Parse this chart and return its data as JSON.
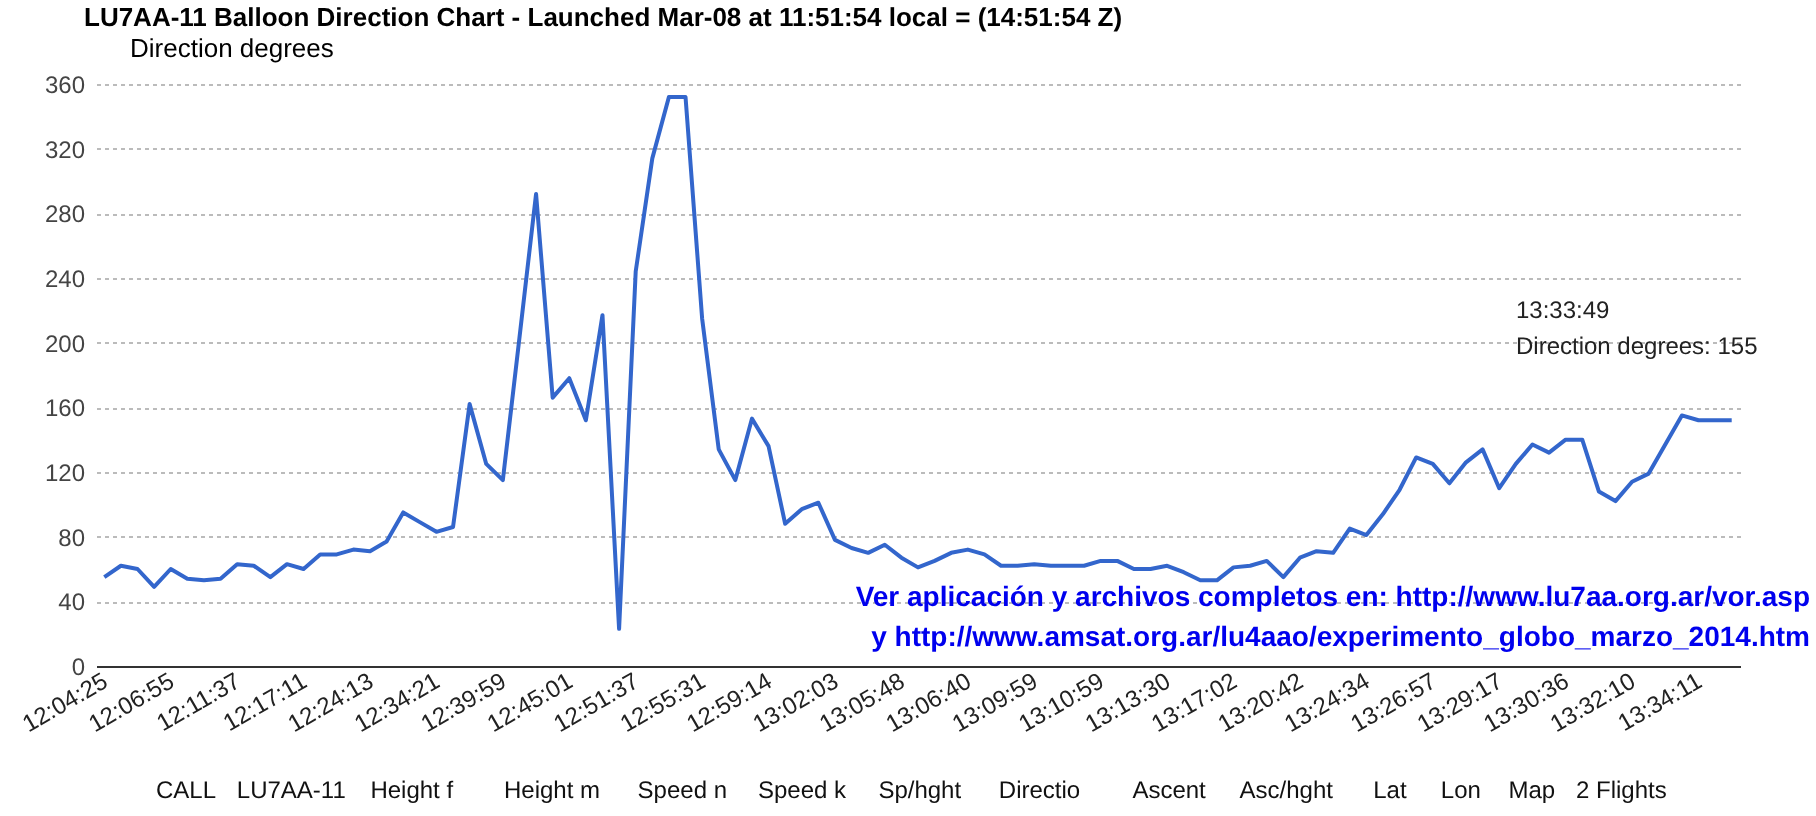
{
  "chart_data": {
    "type": "line",
    "title": "LU7AA-11 Balloon Direction Chart - Launched Mar-08 at 11:51:54 local = (14:51:54 Z)",
    "categories": [
      "12:04:25",
      null,
      null,
      null,
      "12:06:55",
      null,
      null,
      null,
      "12:11:37",
      null,
      null,
      null,
      "12:17:11",
      null,
      null,
      null,
      "12:24:13",
      null,
      null,
      null,
      "12:34:21",
      null,
      null,
      null,
      "12:39:59",
      null,
      null,
      null,
      "12:45:01",
      null,
      null,
      null,
      "12:51:37",
      null,
      null,
      null,
      "12:55:31",
      null,
      null,
      null,
      "12:59:14",
      null,
      null,
      null,
      "13:02:03",
      null,
      null,
      null,
      "13:05:48",
      null,
      null,
      null,
      "13:06:40",
      null,
      null,
      null,
      "13:09:59",
      null,
      null,
      null,
      "13:10:59",
      null,
      null,
      null,
      "13:13:30",
      null,
      null,
      null,
      "13:17:02",
      null,
      null,
      null,
      "13:20:42",
      null,
      null,
      null,
      "13:24:34",
      null,
      null,
      null,
      "13:26:57",
      null,
      null,
      null,
      "13:29:17",
      null,
      null,
      null,
      "13:30:36",
      null,
      null,
      null,
      "13:32:10",
      null,
      null,
      null,
      "13:34:11",
      null,
      null
    ],
    "series": [
      {
        "name": "Direction degrees",
        "color": "#3366cc",
        "values": [
          55,
          62,
          60,
          49,
          60,
          54,
          53,
          54,
          63,
          62,
          55,
          63,
          60,
          69,
          69,
          72,
          71,
          77,
          95,
          89,
          83,
          86,
          162,
          125,
          115,
          203,
          292,
          166,
          178,
          152,
          217,
          23,
          244,
          314,
          352,
          352,
          215,
          134,
          115,
          153,
          136,
          88,
          97,
          101,
          78,
          73,
          70,
          75,
          67,
          61,
          65,
          70,
          72,
          69,
          62,
          62,
          63,
          62,
          62,
          62,
          65,
          65,
          60,
          60,
          62,
          58,
          53,
          53,
          61,
          62,
          65,
          55,
          67,
          71,
          70,
          85,
          81,
          94,
          109,
          129,
          125,
          113,
          126,
          134,
          110,
          125,
          137,
          132,
          140,
          140,
          108,
          102,
          114,
          119,
          137,
          155,
          152,
          152,
          152
        ]
      }
    ],
    "ylim": [
      0,
      360
    ],
    "yticks": [
      0,
      40,
      80,
      120,
      160,
      200,
      240,
      280,
      320,
      360
    ],
    "grid": "y",
    "legend": "top left",
    "line_style": "solid",
    "annotations": [
      "13:33:49\nDirection degrees: 155",
      "Ver aplicación y archivos completos en: http://www.lu7aa.org.ar/vor.asp",
      "y   http://www.amsat.org.ar/lu4aao/experimento_globo_marzo_2014.htm",
      "CALL",
      "LU7AA-11",
      "Height f",
      "Height m",
      "Speed n",
      "Speed k",
      "Sp/hght",
      "Directio",
      "Ascent",
      "Asc/hght",
      "Lat",
      "Lon",
      "Map",
      "2 Flights"
    ]
  }
}
